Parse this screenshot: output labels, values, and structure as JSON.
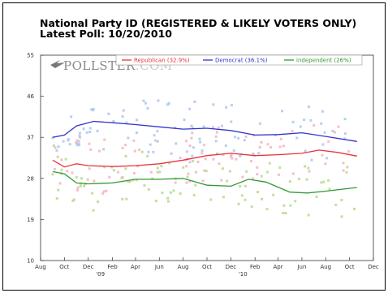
{
  "header": {
    "title": "National Party ID (REGISTERED & LIKELY VOTERS ONLY)",
    "subtitle": "Latest Poll: 10/20/2010"
  },
  "logo": {
    "text": "POLLSTER",
    "suffix": ".COM"
  },
  "chart_data": {
    "type": "line",
    "xlabel": "",
    "ylabel": "",
    "xlim": [
      "2008-08-01",
      "2010-12-01"
    ],
    "ylim": [
      10,
      55
    ],
    "y_ticks": [
      55,
      46,
      37,
      28,
      19,
      10
    ],
    "x_ticks": [
      "Aug",
      "Oct",
      "Dec",
      "Feb",
      "Apr",
      "Jun",
      "Aug",
      "Oct",
      "Dec",
      "Feb",
      "Apr",
      "Jun",
      "Aug",
      "Oct",
      "Dec"
    ],
    "x_tick_dates": [
      "2008-08-01",
      "2008-10-01",
      "2008-12-01",
      "2009-02-01",
      "2009-04-01",
      "2009-06-01",
      "2009-08-01",
      "2009-10-01",
      "2009-12-01",
      "2010-02-01",
      "2010-04-01",
      "2010-06-01",
      "2010-08-01",
      "2010-10-01",
      "2010-12-01"
    ],
    "year_labels": [
      {
        "text": "'09",
        "date": "2009-01-01"
      },
      {
        "text": "'10",
        "date": "2010-01-01"
      }
    ],
    "legend_position": "top",
    "grid": false,
    "series": [
      {
        "name": "Republican (32.9%)",
        "color": "#e8333b",
        "dot_color": "#f4b3c2",
        "trend": [
          [
            "2008-09-01",
            32
          ],
          [
            "2008-10-01",
            30.5
          ],
          [
            "2008-11-01",
            31.2
          ],
          [
            "2008-12-01",
            30.8
          ],
          [
            "2009-02-01",
            30.6
          ],
          [
            "2009-04-01",
            30.8
          ],
          [
            "2009-06-01",
            31.2
          ],
          [
            "2009-08-01",
            32
          ],
          [
            "2009-10-01",
            33
          ],
          [
            "2009-12-01",
            33.5
          ],
          [
            "2010-02-01",
            33
          ],
          [
            "2010-04-01",
            33.2
          ],
          [
            "2010-06-01",
            33.5
          ],
          [
            "2010-07-15",
            34.2
          ],
          [
            "2010-09-01",
            33.7
          ],
          [
            "2010-10-20",
            32.9
          ]
        ]
      },
      {
        "name": "Democrat (36.1%)",
        "color": "#3333cc",
        "dot_color": "#a9c8ee",
        "trend": [
          [
            "2008-09-01",
            37
          ],
          [
            "2008-10-01",
            37.5
          ],
          [
            "2008-11-01",
            39.5
          ],
          [
            "2008-12-15",
            40.5
          ],
          [
            "2009-02-01",
            40.2
          ],
          [
            "2009-04-01",
            39.8
          ],
          [
            "2009-06-01",
            39.3
          ],
          [
            "2009-08-01",
            38.8
          ],
          [
            "2009-10-01",
            39
          ],
          [
            "2009-12-01",
            38.5
          ],
          [
            "2010-02-01",
            37.5
          ],
          [
            "2010-04-01",
            37.6
          ],
          [
            "2010-06-01",
            38
          ],
          [
            "2010-08-01",
            37.2
          ],
          [
            "2010-10-20",
            36.1
          ]
        ]
      },
      {
        "name": "independent (26%)",
        "color": "#339933",
        "dot_color": "#b6da8c",
        "trend": [
          [
            "2008-09-01",
            29.5
          ],
          [
            "2008-10-01",
            29
          ],
          [
            "2008-11-01",
            27
          ],
          [
            "2008-12-01",
            26.8
          ],
          [
            "2009-02-01",
            27
          ],
          [
            "2009-04-01",
            27.8
          ],
          [
            "2009-06-01",
            27.8
          ],
          [
            "2009-08-01",
            28
          ],
          [
            "2009-10-01",
            26.5
          ],
          [
            "2009-12-01",
            26.3
          ],
          [
            "2010-01-15",
            27.8
          ],
          [
            "2010-03-01",
            27.2
          ],
          [
            "2010-05-01",
            25
          ],
          [
            "2010-06-15",
            24.8
          ],
          [
            "2010-08-01",
            25.2
          ],
          [
            "2010-10-20",
            26
          ]
        ]
      }
    ]
  }
}
